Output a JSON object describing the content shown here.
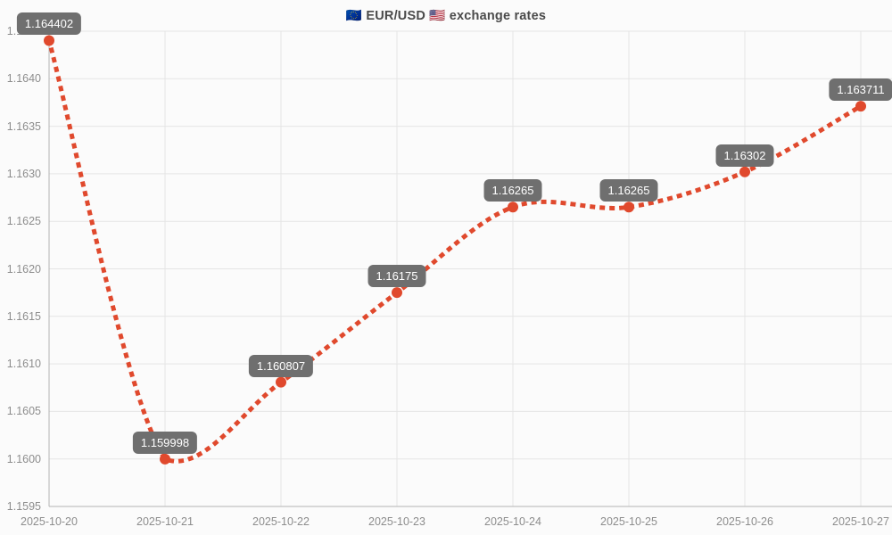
{
  "chart_data": {
    "type": "line",
    "title": "🇪🇺 EUR/USD 🇺🇸 exchange rates",
    "x": [
      "2025-10-20",
      "2025-10-21",
      "2025-10-22",
      "2025-10-23",
      "2025-10-24",
      "2025-10-25",
      "2025-10-26",
      "2025-10-27"
    ],
    "values": [
      1.164402,
      1.159998,
      1.160807,
      1.16175,
      1.16265,
      1.16265,
      1.16302,
      1.163711
    ],
    "point_labels": [
      "1.164402",
      "1.159998",
      "1.160807",
      "1.16175",
      "1.16265",
      "1.16265",
      "1.16302",
      "1.163711"
    ],
    "xlabel": "",
    "ylabel": "",
    "ylim": [
      1.1595,
      1.1645
    ],
    "y_tick_step": 0.0005,
    "y_tick_decimals": 4,
    "grid": true,
    "legend": false,
    "line_style": "dotted",
    "marker": "circle",
    "colors": {
      "line": "#e0492d",
      "marker": "#e0492d",
      "tooltip_bg": "#6f6f6f",
      "tooltip_text": "#ffffff",
      "grid": "#e5e5e5",
      "axis": "#b3b3b3",
      "tick_text": "#8d8d8d",
      "title_text": "#4a4a4a",
      "background": "#fbfbfb"
    }
  }
}
